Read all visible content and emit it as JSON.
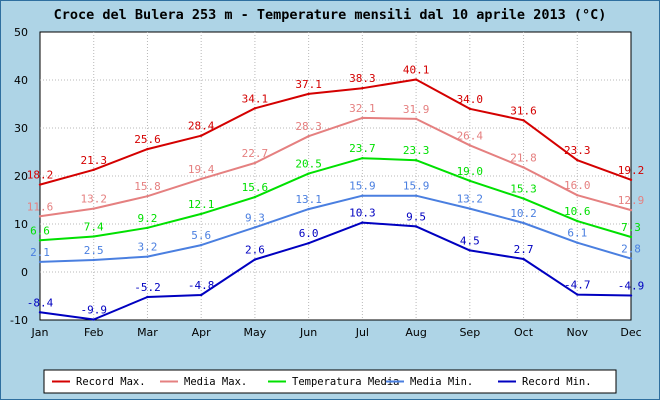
{
  "chart_data": {
    "type": "line",
    "title": "Croce del Bulera 253 m - Temperature mensili dal 10 aprile 2013 (°C)",
    "categories": [
      "Jan",
      "Feb",
      "Mar",
      "Apr",
      "May",
      "Jun",
      "Jul",
      "Aug",
      "Sep",
      "Oct",
      "Nov",
      "Dec"
    ],
    "ylim": [
      -10,
      50
    ],
    "yticks": [
      -10,
      0,
      10,
      20,
      30,
      40,
      50
    ],
    "grid": true,
    "legend_position": "bottom",
    "series": [
      {
        "name": "Record Max.",
        "color": "#d40000",
        "values": [
          18.2,
          21.3,
          25.6,
          28.4,
          34.1,
          37.1,
          38.3,
          40.1,
          34.0,
          31.6,
          23.3,
          19.2
        ],
        "labels": [
          "18.2",
          "21.3",
          "25.6",
          "28.4",
          "34.1",
          "37.1",
          "38.3",
          "40.1",
          "34.0",
          "31.6",
          "23.3",
          "19.2"
        ]
      },
      {
        "name": "Media Max.",
        "color": "#e58080",
        "values": [
          11.6,
          13.2,
          15.8,
          19.4,
          22.7,
          28.3,
          32.1,
          31.9,
          26.4,
          21.8,
          16.0,
          12.9
        ],
        "labels": [
          "11.6",
          "13.2",
          "15.8",
          "19.4",
          "22.7",
          "28.3",
          "32.1",
          "31.9",
          "26.4",
          "21.8",
          "16.0",
          "12.9"
        ]
      },
      {
        "name": "Temperatura Media",
        "color": "#00e000",
        "values": [
          6.6,
          7.4,
          9.2,
          12.1,
          15.6,
          20.5,
          23.7,
          23.3,
          19.0,
          15.3,
          10.6,
          7.3
        ],
        "labels": [
          "6.6",
          "7.4",
          "9.2",
          "12.1",
          "15.6",
          "20.5",
          "23.7",
          "23.3",
          "19.0",
          "15.3",
          "10.6",
          "7.3"
        ]
      },
      {
        "name": "Media Min.",
        "color": "#4a7fe0",
        "values": [
          2.1,
          2.5,
          3.2,
          5.6,
          9.3,
          13.1,
          15.9,
          15.9,
          13.2,
          10.2,
          6.1,
          2.8
        ],
        "labels": [
          "2.1",
          "2.5",
          "3.2",
          "5.6",
          "9.3",
          "13.1",
          "15.9",
          "15.9",
          "13.2",
          "10.2",
          "6.1",
          "2.8"
        ]
      },
      {
        "name": "Record Min.",
        "color": "#0000c0",
        "values": [
          -8.4,
          -9.9,
          -5.2,
          -4.8,
          2.6,
          6.0,
          10.3,
          9.5,
          4.5,
          2.7,
          -4.7,
          -4.9
        ],
        "labels": [
          "-8.4",
          "-9.9",
          "-5.2",
          "-4.8",
          "2.6",
          "6.0",
          "10.3",
          "9.5",
          "4.5",
          "2.7",
          "-4.7",
          "-4.9"
        ]
      }
    ]
  }
}
